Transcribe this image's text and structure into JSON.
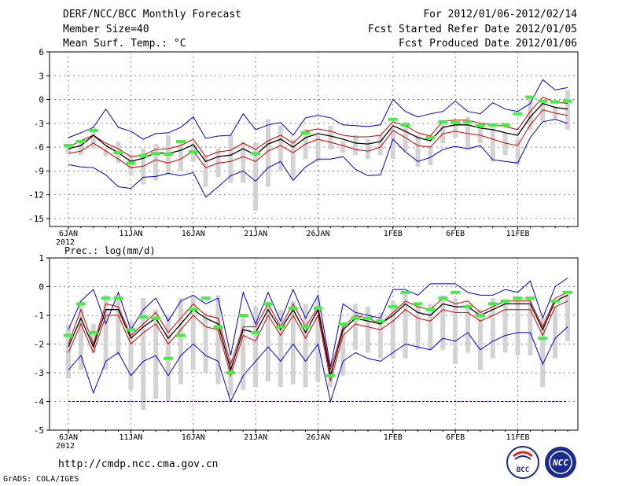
{
  "header": {
    "title": "DERF/NCC/BCC Monthly Forecast",
    "member_size": "Member Size=40",
    "variable": "Mean Surf. Temp.: °C",
    "period": "For 2012/01/06-2012/02/14",
    "started": "Fcst Started Refer Date 2012/01/05",
    "produced": "Fcst Produced Date 2012/01/06"
  },
  "footer": {
    "url": "http://cmdp.ncc.cma.gov.cn",
    "grads": "GrADS: COLA/IGES",
    "logo_bcc": "BCC",
    "logo_ncc": "NCC"
  },
  "colors": {
    "envelope": "#0000cc",
    "spread": "#cc0000",
    "mean": "#000000",
    "bar": "#d3d3d3",
    "obs": "#44ee44"
  },
  "chart_data": [
    {
      "type": "line",
      "title": "Mean Surf. Temp.: °C",
      "xlabel": "",
      "ylabel": "",
      "ylim": [
        -16,
        6
      ],
      "yticks": [
        6,
        3,
        0,
        -3,
        -6,
        -9,
        -12,
        -15
      ],
      "x_day_range": [
        0,
        40
      ],
      "xticks": [
        {
          "day": 0,
          "label": "6JAN",
          "sub": "2012"
        },
        {
          "day": 5,
          "label": "11JAN"
        },
        {
          "day": 10,
          "label": "16JAN"
        },
        {
          "day": 15,
          "label": "21JAN"
        },
        {
          "day": 20,
          "label": "26JAN"
        },
        {
          "day": 26,
          "label": "1FEB"
        },
        {
          "day": 31,
          "label": "6FEB"
        },
        {
          "day": 36,
          "label": "11FEB"
        }
      ],
      "series": [
        {
          "name": "max",
          "role": "envelope",
          "values": [
            -4.8,
            -4.2,
            -3.5,
            -1.2,
            -3.5,
            -4,
            -5,
            -4.3,
            -4.2,
            -3.5,
            -2.2,
            -4.9,
            -4.6,
            -4.5,
            -1.8,
            -3.8,
            -3.2,
            -2.9,
            -4.5,
            -2.3,
            -2,
            -2.3,
            -3.2,
            -3.3,
            -3.4,
            -3.2,
            0,
            -1.5,
            -2.2,
            -1.8,
            -1.5,
            -0.2,
            -1.5,
            -1.8,
            -0.4,
            -1.2,
            -1.5,
            -0.5,
            2.5,
            1.2,
            1.5
          ]
        },
        {
          "name": "spread_upper",
          "role": "spread",
          "values": [
            -6,
            -5.2,
            -4.5,
            -5.5,
            -6.2,
            -7.2,
            -7,
            -6.3,
            -6.2,
            -5.8,
            -5,
            -7.2,
            -6.6,
            -6.4,
            -5.5,
            -6.3,
            -5.2,
            -4.5,
            -5.5,
            -4,
            -3.7,
            -4,
            -4.5,
            -4.7,
            -4.7,
            -4.5,
            -2.8,
            -3.3,
            -4.2,
            -4.6,
            -2.7,
            -2.6,
            -2.6,
            -3,
            -3.2,
            -3.4,
            -3.8,
            -1.5,
            0.3,
            -0.3,
            -0.5
          ]
        },
        {
          "name": "mean",
          "role": "mean",
          "values": [
            -6.2,
            -5.8,
            -4.5,
            -5.8,
            -6.7,
            -7.8,
            -7.4,
            -6.7,
            -6.8,
            -6.4,
            -5.7,
            -7.8,
            -7.2,
            -7,
            -6.2,
            -7,
            -5.6,
            -5,
            -6,
            -4.8,
            -4.3,
            -4.6,
            -5,
            -5.5,
            -5.6,
            -5.3,
            -3.3,
            -4,
            -4.8,
            -5.2,
            -3.5,
            -3.2,
            -3.2,
            -3.6,
            -3.8,
            -4.2,
            -4.5,
            -2.2,
            -0.5,
            -1,
            -1.2
          ]
        },
        {
          "name": "spread_lower",
          "role": "spread",
          "values": [
            -6.8,
            -6.5,
            -5.5,
            -6.5,
            -7.5,
            -8.6,
            -8.4,
            -7.6,
            -8,
            -7.5,
            -6.5,
            -8.6,
            -8,
            -7.8,
            -7.2,
            -7.8,
            -6.5,
            -5.8,
            -6.7,
            -5.6,
            -5,
            -5.4,
            -5.8,
            -6.3,
            -6.5,
            -6,
            -3.9,
            -4.8,
            -5.8,
            -6,
            -4.3,
            -4,
            -4.3,
            -4.5,
            -5,
            -5.5,
            -5.8,
            -3.2,
            -1.3,
            -1.7,
            -2
          ]
        },
        {
          "name": "min",
          "role": "envelope",
          "values": [
            -8.2,
            -8.5,
            -8.6,
            -9.5,
            -11,
            -11.2,
            -9.8,
            -9.7,
            -9.3,
            -9.6,
            -9.2,
            -12.3,
            -11,
            -9.6,
            -9,
            -10.3,
            -8.6,
            -7.8,
            -10.2,
            -8.5,
            -7.5,
            -7.5,
            -7.2,
            -8.8,
            -9.6,
            -9.5,
            -5,
            -6.6,
            -7.8,
            -7.3,
            -6.3,
            -5.9,
            -6.2,
            -5.8,
            -7.6,
            -7.8,
            -8,
            -4.8,
            -2.8,
            -2.5,
            -3
          ]
        },
        {
          "name": "bar_top",
          "role": "bar",
          "values": [
            -5.7,
            -5.2,
            -3.5,
            -6.2,
            -5.3,
            -6.9,
            -6.2,
            -5.6,
            -4.5,
            -5.2,
            -5.5,
            -7,
            -6.2,
            -4.5,
            -5.3,
            -5.5,
            -2.5,
            -3.3,
            -5,
            -3.7,
            -4.5,
            -3.3,
            -5.2,
            -4.5,
            -5,
            -4.5,
            -3.5,
            -2.8,
            -4.5,
            -5.8,
            -3,
            -2.8,
            -2.2,
            -3.7,
            -3,
            -4.3,
            -5,
            0.5,
            -0.2,
            -0.8,
            1.2
          ]
        },
        {
          "name": "bar_bottom",
          "role": "bar",
          "values": [
            -6.8,
            -7,
            -6.2,
            -7.2,
            -8,
            -9.5,
            -10.7,
            -10.2,
            -9.5,
            -9,
            -7.8,
            -11,
            -9.8,
            -10.5,
            -10.5,
            -14,
            -11,
            -9,
            -10,
            -7.5,
            -7.7,
            -6.3,
            -6.7,
            -7,
            -7.5,
            -7,
            -7.5,
            -6.5,
            -8.5,
            -8.3,
            -5.5,
            -4.8,
            -6.3,
            -5.5,
            -7.8,
            -7,
            -8.3,
            -3.8,
            -2.7,
            -2.5,
            -3.8
          ]
        },
        {
          "name": "observed",
          "role": "obs",
          "values": [
            -5.8,
            -5.3,
            -3.9,
            null,
            -6.7,
            -8,
            -7.1,
            -6.8,
            -6.9,
            -5.3,
            -6.6,
            null,
            null,
            null,
            null,
            -6.8,
            null,
            null,
            null,
            -4.2,
            null,
            null,
            null,
            null,
            null,
            null,
            -2.5,
            -3.2,
            null,
            -4.8,
            -2.8,
            -2.9,
            -2.8,
            -3.3,
            -3.2,
            -3.2,
            -1.8,
            0.3,
            -0.2,
            -0.3,
            -0.2
          ]
        }
      ]
    },
    {
      "type": "line",
      "title": "Prec.: log(mm/d)",
      "xlabel": "",
      "ylabel": "",
      "ylim": [
        -5,
        1
      ],
      "yticks": [
        1,
        0,
        -1,
        -2,
        -3,
        -4,
        -5
      ],
      "x_day_range": [
        0,
        40
      ],
      "xticks": [
        {
          "day": 0,
          "label": "6JAN",
          "sub": "2012"
        },
        {
          "day": 5,
          "label": "11JAN"
        },
        {
          "day": 10,
          "label": "16JAN"
        },
        {
          "day": 15,
          "label": "21JAN"
        },
        {
          "day": 20,
          "label": "26JAN"
        },
        {
          "day": 26,
          "label": "1FEB"
        },
        {
          "day": 31,
          "label": "6FEB"
        },
        {
          "day": 36,
          "label": "11FEB"
        }
      ],
      "reference_line": -4,
      "series": [
        {
          "name": "max",
          "role": "envelope",
          "values": [
            -1.5,
            -0.5,
            -0.1,
            -1.3,
            -0.2,
            -1.5,
            -0.8,
            -0.4,
            -1.2,
            -0.5,
            -0.3,
            -0.6,
            -0.4,
            -2.4,
            -0.2,
            -1.3,
            -0.2,
            -1.2,
            -0.1,
            -1.1,
            -0.3,
            -2.8,
            -0.6,
            -0.9,
            -1,
            -1.1,
            -0.1,
            -0.1,
            -0.3,
            0.1,
            0.1,
            0.1,
            -0.2,
            -0.3,
            -0.3,
            -0.1,
            -0.2,
            0.2,
            -1.1,
            0,
            0.3
          ]
        },
        {
          "name": "spread_upper",
          "role": "spread",
          "values": [
            -2,
            -0.8,
            -2,
            -0.6,
            -0.7,
            -1.7,
            -1.3,
            -0.9,
            -1.6,
            -1.1,
            -0.6,
            -1,
            -1.1,
            -2.7,
            -1.4,
            -1.4,
            -0.6,
            -1.4,
            -0.6,
            -1.4,
            -0.7,
            -2.9,
            -1.4,
            -1,
            -1.1,
            -1.3,
            -0.9,
            -0.5,
            -0.7,
            -0.8,
            -0.4,
            -0.6,
            -0.5,
            -0.9,
            -0.7,
            -0.5,
            -0.5,
            -0.5,
            -1.4,
            -0.4,
            -0.2
          ]
        },
        {
          "name": "mean",
          "role": "mean",
          "values": [
            -2.1,
            -1.1,
            -2.1,
            -0.8,
            -0.8,
            -1.8,
            -1.4,
            -1.1,
            -1.8,
            -1.3,
            -0.8,
            -1.1,
            -1.3,
            -2.9,
            -1.5,
            -1.6,
            -0.8,
            -1.5,
            -0.8,
            -1.6,
            -0.8,
            -3.1,
            -1.5,
            -1.1,
            -1.2,
            -1.3,
            -1,
            -0.6,
            -0.9,
            -1,
            -0.6,
            -0.7,
            -0.7,
            -1,
            -0.8,
            -0.6,
            -0.6,
            -0.6,
            -1.5,
            -0.5,
            -0.3
          ]
        },
        {
          "name": "spread_lower",
          "role": "spread",
          "values": [
            -2.3,
            -1.3,
            -2.3,
            -1,
            -1,
            -2,
            -1.6,
            -1.3,
            -2,
            -1.5,
            -1,
            -1.4,
            -1.5,
            -3.1,
            -1.7,
            -1.9,
            -1,
            -1.7,
            -1,
            -1.8,
            -1,
            -3.3,
            -1.7,
            -1.3,
            -1.4,
            -1.5,
            -1.2,
            -0.8,
            -1.1,
            -1.2,
            -0.8,
            -0.9,
            -0.9,
            -1.2,
            -1,
            -0.8,
            -0.8,
            -0.8,
            -1.7,
            -0.7,
            -0.5
          ]
        },
        {
          "name": "min",
          "role": "envelope",
          "values": [
            -2.9,
            -2.4,
            -3.7,
            -2.6,
            -2.3,
            -3.1,
            -2.6,
            -2.4,
            -3.1,
            -2.4,
            -2,
            -2.4,
            -2.6,
            -4,
            -3.1,
            -2.6,
            -2.1,
            -2.6,
            -2,
            -2.6,
            -2,
            -4,
            -2.6,
            -2.3,
            -2.5,
            -2.6,
            -2.3,
            -2,
            -2.1,
            -2.2,
            -1.8,
            -1.9,
            -1.6,
            -2.2,
            -1.9,
            -1.7,
            -1.6,
            -1.6,
            -2.7,
            -1.8,
            -1.4
          ]
        },
        {
          "name": "bar_top",
          "role": "bar",
          "values": [
            -1.3,
            -0.5,
            -1.3,
            -0.3,
            -0.5,
            -1.2,
            -0.4,
            -0.8,
            -1,
            -0.4,
            -0.3,
            -0.9,
            -0.3,
            -2.5,
            -1.1,
            -0.7,
            -0.5,
            -0.8,
            -0.5,
            -0.6,
            -0.4,
            -2.9,
            -1.3,
            -0.6,
            -0.7,
            -0.9,
            -0.5,
            -0.2,
            -0.6,
            -0.6,
            -0.3,
            -0.4,
            -0.6,
            -0.8,
            -0.4,
            -0.5,
            -0.5,
            -0.4,
            -1.1,
            -0.7,
            -0.2
          ]
        },
        {
          "name": "bar_bottom",
          "role": "bar",
          "values": [
            -3.2,
            -2.9,
            -2.3,
            -2.9,
            -2.4,
            -3.6,
            -4.3,
            -3.9,
            -4,
            -3.4,
            -2.9,
            -3,
            -3.4,
            -3.8,
            -3.6,
            -3.5,
            -3.3,
            -3.5,
            -3.4,
            -3.5,
            -3.3,
            -3.5,
            -3.1,
            -2.2,
            -2.3,
            -2.5,
            -2.5,
            -2.5,
            -2.2,
            -2.2,
            -2.2,
            -2.7,
            -2.3,
            -2.9,
            -2.5,
            -2.3,
            -2.4,
            -2.4,
            -3.5,
            -2.5,
            -1.9
          ]
        },
        {
          "name": "observed",
          "role": "obs",
          "values": [
            -1.7,
            -0.6,
            -1.6,
            -0.4,
            -0.4,
            -1.5,
            -1.05,
            -1.1,
            -2.5,
            -1.7,
            -0.8,
            -0.4,
            -1.4,
            -3,
            -1,
            -1.6,
            -0.6,
            -1.4,
            -0.75,
            -1.4,
            -0.75,
            -3.1,
            -1.3,
            -1.1,
            -1.1,
            -1.2,
            -0.7,
            -0.2,
            -0.6,
            -0.8,
            -0.4,
            -0.2,
            -0.7,
            -1,
            -0.6,
            -0.5,
            -0.4,
            -0.4,
            -1.8,
            -0.5,
            -0.2
          ]
        }
      ]
    }
  ]
}
